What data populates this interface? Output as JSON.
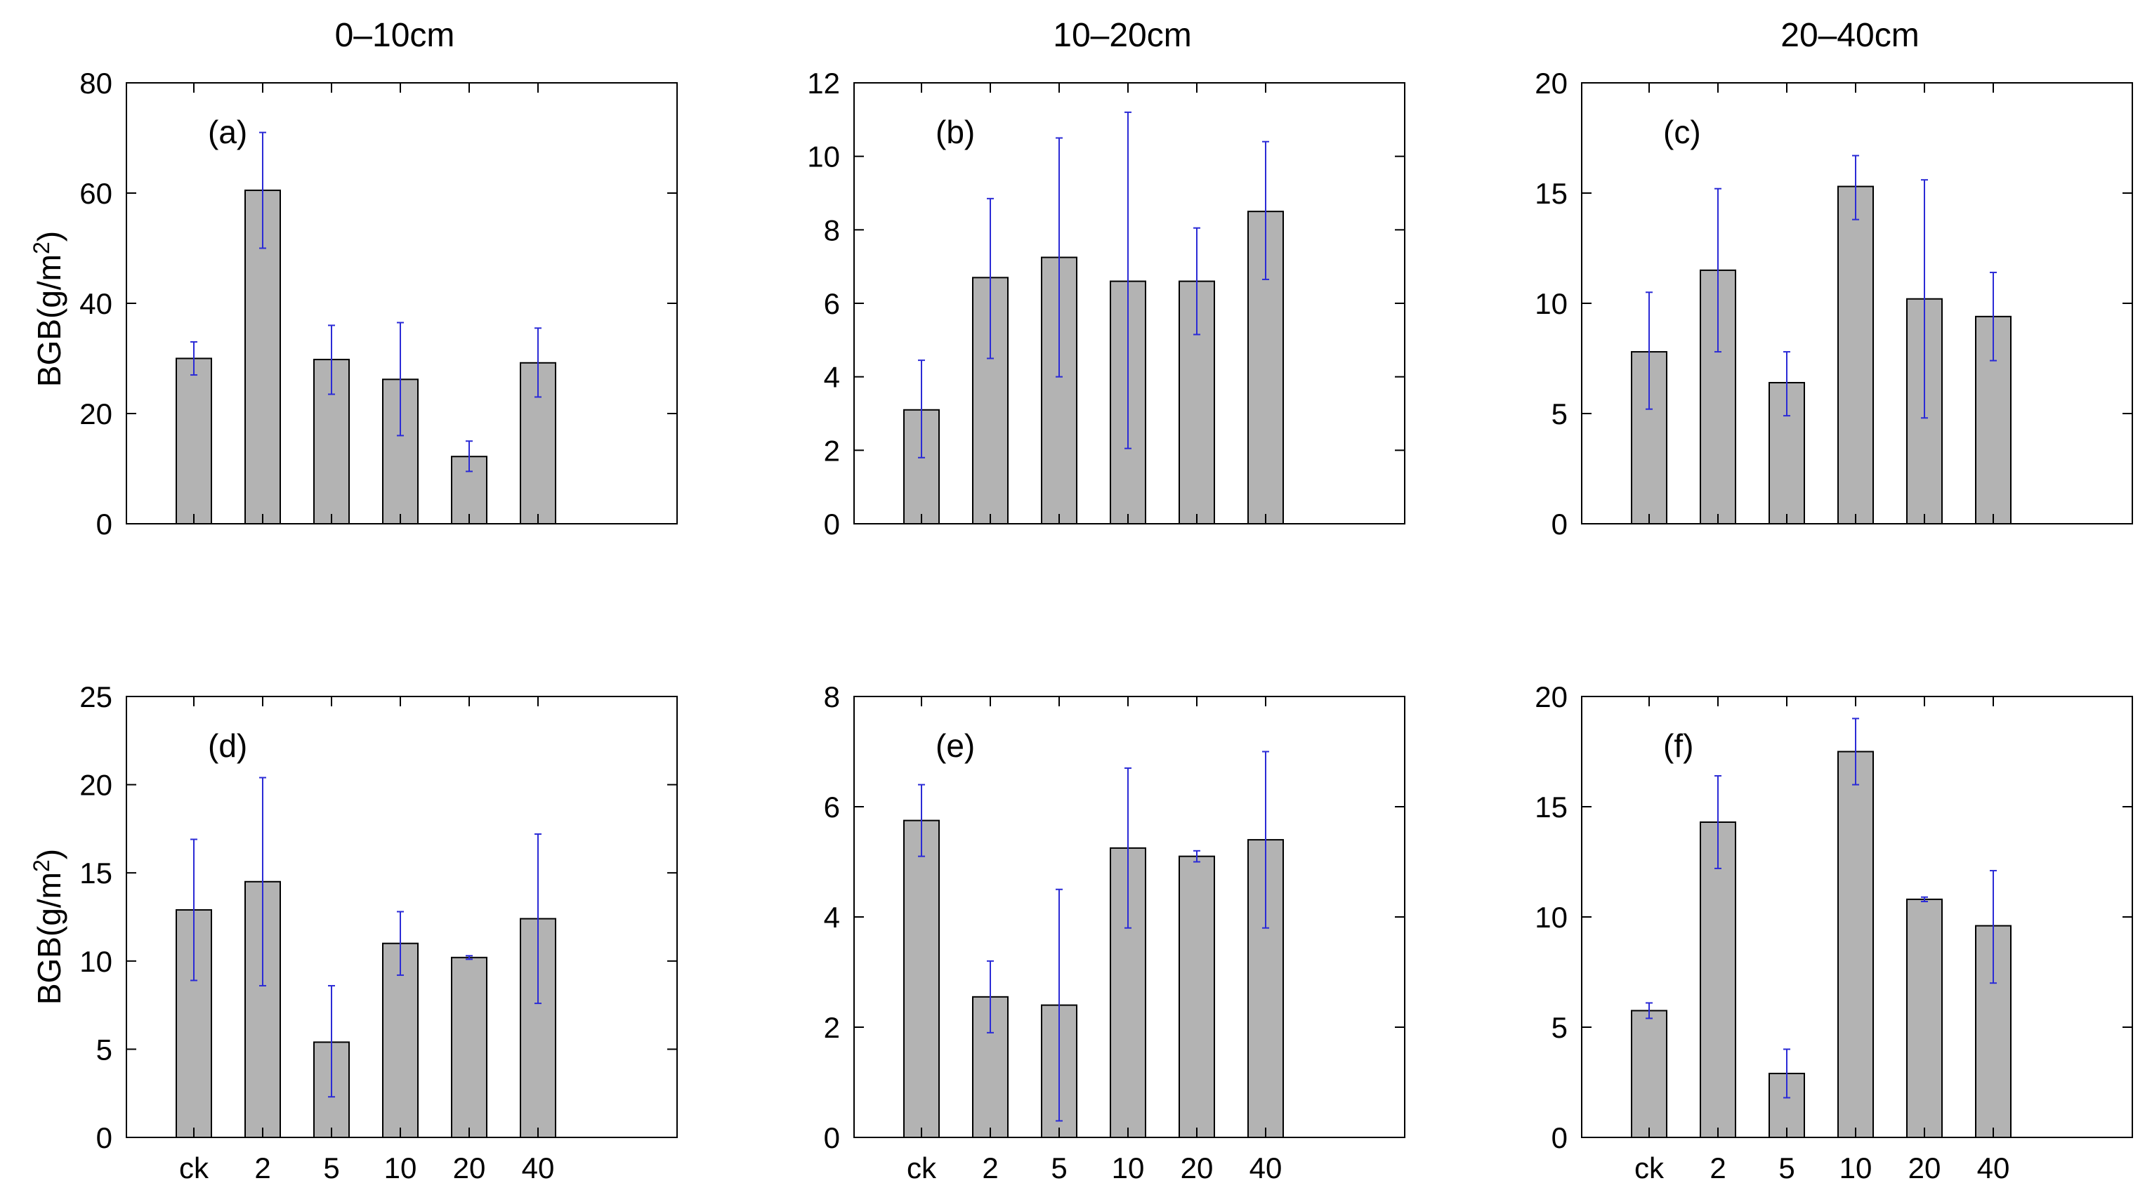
{
  "figure": {
    "column_titles": [
      "0–10cm",
      "10–20cm",
      "20–40cm"
    ],
    "row_ylabels": [
      {
        "base": "BGB(g/m",
        "sup": "2",
        "tail": ")"
      },
      {
        "base": "BGB(g/m",
        "sup": "2",
        "tail": ")"
      }
    ],
    "colors": {
      "bar": "#b3b3b3",
      "bar_edge": "#000000",
      "error": "#2b2bd6",
      "axes": "#000000"
    }
  },
  "chart_data": [
    {
      "type": "bar",
      "panel": "(a)",
      "title": "0–10cm",
      "categories": [
        "ck",
        "2",
        "5",
        "10",
        "20",
        "40"
      ],
      "values": [
        30,
        60.5,
        29.8,
        26.2,
        12.2,
        29.2
      ],
      "error_low": [
        27,
        50,
        23.5,
        16,
        9.5,
        23
      ],
      "error_high": [
        33,
        71,
        36,
        36.5,
        15,
        35.5
      ],
      "ylim": [
        0,
        80
      ],
      "yticks": [
        0,
        20,
        40,
        60,
        80
      ],
      "show_xticks": false,
      "ylabel": "BGB(g/m2)"
    },
    {
      "type": "bar",
      "panel": "(b)",
      "title": "10–20cm",
      "categories": [
        "ck",
        "2",
        "5",
        "10",
        "20",
        "40"
      ],
      "values": [
        3.1,
        6.7,
        7.25,
        6.6,
        6.6,
        8.5
      ],
      "error_low": [
        1.8,
        4.5,
        4.0,
        2.05,
        5.15,
        6.65
      ],
      "error_high": [
        4.45,
        8.85,
        10.5,
        11.2,
        8.05,
        10.4
      ],
      "ylim": [
        0,
        12
      ],
      "yticks": [
        0,
        2,
        4,
        6,
        8,
        10,
        12
      ],
      "show_xticks": false,
      "ylabel": ""
    },
    {
      "type": "bar",
      "panel": "(c)",
      "title": "20–40cm",
      "categories": [
        "ck",
        "2",
        "5",
        "10",
        "20",
        "40"
      ],
      "values": [
        7.8,
        11.5,
        6.4,
        15.3,
        10.2,
        9.4
      ],
      "error_low": [
        5.2,
        7.8,
        4.9,
        13.8,
        4.8,
        7.4
      ],
      "error_high": [
        10.5,
        15.2,
        7.8,
        16.7,
        15.6,
        11.4
      ],
      "ylim": [
        0,
        20
      ],
      "yticks": [
        0,
        5,
        10,
        15,
        20
      ],
      "show_xticks": false,
      "ylabel": ""
    },
    {
      "type": "bar",
      "panel": "(d)",
      "title": "",
      "categories": [
        "ck",
        "2",
        "5",
        "10",
        "20",
        "40"
      ],
      "values": [
        12.9,
        14.5,
        5.4,
        11.0,
        10.2,
        12.4
      ],
      "error_low": [
        8.9,
        8.6,
        2.3,
        9.2,
        10.1,
        7.6
      ],
      "error_high": [
        16.9,
        20.4,
        8.6,
        12.8,
        10.3,
        17.2
      ],
      "ylim": [
        0,
        25
      ],
      "yticks": [
        0,
        5,
        10,
        15,
        20,
        25
      ],
      "show_xticks": true,
      "ylabel": "BGB(g/m2)"
    },
    {
      "type": "bar",
      "panel": "(e)",
      "title": "",
      "categories": [
        "ck",
        "2",
        "5",
        "10",
        "20",
        "40"
      ],
      "values": [
        5.75,
        2.55,
        2.4,
        5.25,
        5.1,
        5.4
      ],
      "error_low": [
        5.1,
        1.9,
        0.3,
        3.8,
        5.0,
        3.8
      ],
      "error_high": [
        6.4,
        3.2,
        4.5,
        6.7,
        5.2,
        7.0
      ],
      "ylim": [
        0,
        8
      ],
      "yticks": [
        0,
        2,
        4,
        6,
        8
      ],
      "show_xticks": true,
      "ylabel": ""
    },
    {
      "type": "bar",
      "panel": "(f)",
      "title": "",
      "categories": [
        "ck",
        "2",
        "5",
        "10",
        "20",
        "40"
      ],
      "values": [
        5.75,
        14.3,
        2.9,
        17.5,
        10.8,
        9.6
      ],
      "error_low": [
        5.4,
        12.2,
        1.8,
        16.0,
        10.7,
        7.0
      ],
      "error_high": [
        6.1,
        16.4,
        4.0,
        19.0,
        10.9,
        12.1
      ],
      "ylim": [
        0,
        20
      ],
      "yticks": [
        0,
        5,
        10,
        15,
        20
      ],
      "show_xticks": true,
      "ylabel": ""
    }
  ]
}
